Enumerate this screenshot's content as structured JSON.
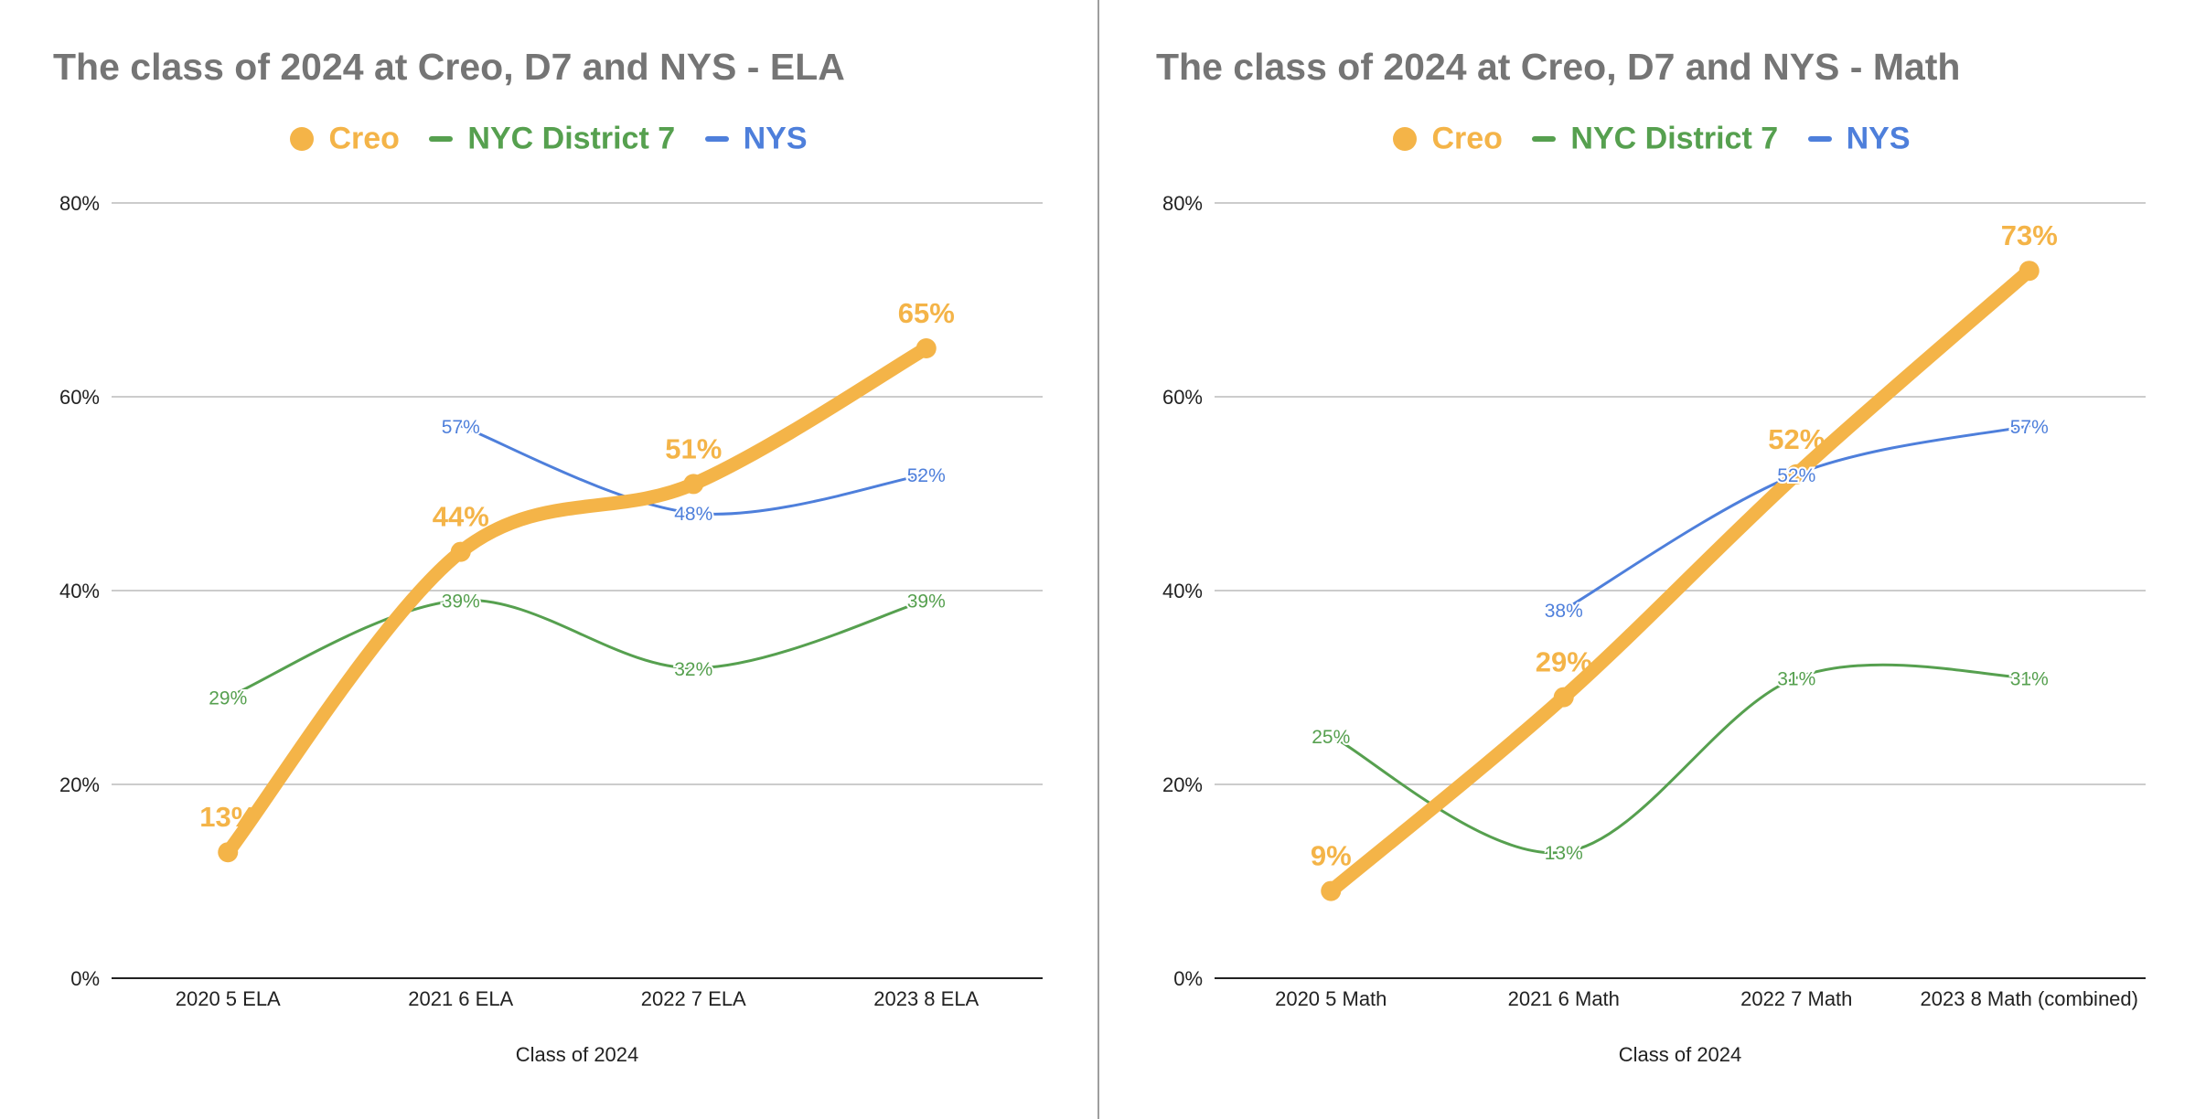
{
  "colors": {
    "creo": "#F4B448",
    "district": "#56A04F",
    "nys": "#4E7FDB",
    "title": "#757575",
    "grid": "#cccccc",
    "axis": "#222222"
  },
  "chart_data": [
    {
      "type": "line",
      "title": "The class of 2024 at Creo, D7 and NYS - ELA",
      "xlabel": "Class of 2024",
      "ylabel": "",
      "categories": [
        "2020 5 ELA",
        "2021 6 ELA",
        "2022 7 ELA",
        "2023 8 ELA"
      ],
      "ylim": [
        0,
        80
      ],
      "yticks": [
        "0%",
        "20%",
        "40%",
        "60%",
        "80%"
      ],
      "grid": true,
      "legend_position": "top",
      "series": [
        {
          "name": "Creo",
          "key": "creo",
          "values": [
            13,
            44,
            51,
            65
          ],
          "labels": [
            "13%",
            "44%",
            "51%",
            "65%"
          ]
        },
        {
          "name": "NYC District 7",
          "key": "district",
          "values": [
            29,
            39,
            32,
            39
          ],
          "labels": [
            "29%",
            "39%",
            "32%",
            "39%"
          ]
        },
        {
          "name": "NYS",
          "key": "nys",
          "values": [
            null,
            57,
            48,
            52
          ],
          "labels": [
            "",
            "57%",
            "48%",
            "52%"
          ]
        }
      ]
    },
    {
      "type": "line",
      "title": "The class of 2024 at Creo, D7 and NYS - Math",
      "xlabel": "Class of 2024",
      "ylabel": "",
      "categories": [
        "2020 5 Math",
        "2021 6 Math",
        "2022 7 Math",
        "2023 8 Math (combined)"
      ],
      "ylim": [
        0,
        80
      ],
      "yticks": [
        "0%",
        "20%",
        "40%",
        "60%",
        "80%"
      ],
      "grid": true,
      "legend_position": "top",
      "series": [
        {
          "name": "Creo",
          "key": "creo",
          "values": [
            9,
            29,
            52,
            73
          ],
          "labels": [
            "9%",
            "29%",
            "52%",
            "73%"
          ]
        },
        {
          "name": "NYC District 7",
          "key": "district",
          "values": [
            25,
            13,
            31,
            31
          ],
          "labels": [
            "25%",
            "13%",
            "31%",
            "31%"
          ]
        },
        {
          "name": "NYS",
          "key": "nys",
          "values": [
            null,
            38,
            52,
            57
          ],
          "labels": [
            "",
            "38%",
            "52%",
            "57%"
          ]
        }
      ]
    }
  ]
}
